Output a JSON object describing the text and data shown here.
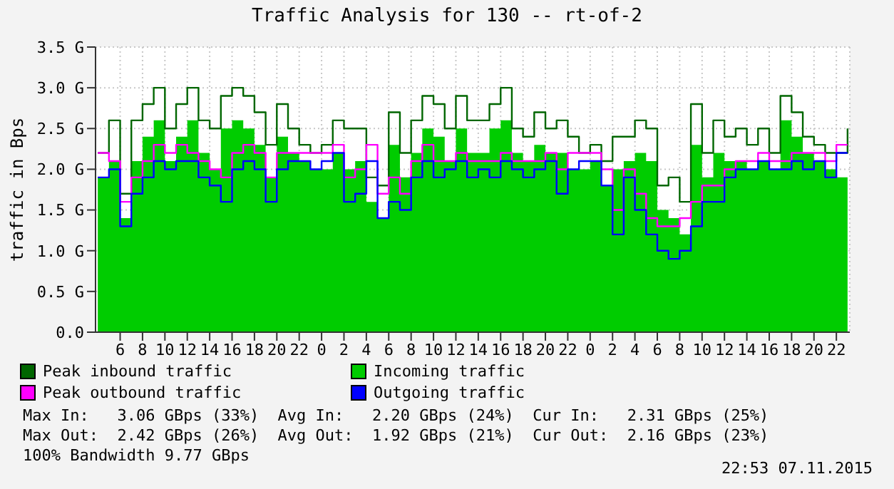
{
  "chart_data": {
    "type": "step",
    "title": "Traffic Analysis for 130 -- rt-of-2",
    "ylabel": "traffic in Bps",
    "x": [
      "2015-11-05T04:00",
      "2015-11-05T05:00",
      "2015-11-05T06:00",
      "2015-11-05T07:00",
      "2015-11-05T08:00",
      "2015-11-05T09:00",
      "2015-11-05T10:00",
      "2015-11-05T11:00",
      "2015-11-05T12:00",
      "2015-11-05T13:00",
      "2015-11-05T14:00",
      "2015-11-05T15:00",
      "2015-11-05T16:00",
      "2015-11-05T17:00",
      "2015-11-05T18:00",
      "2015-11-05T19:00",
      "2015-11-05T20:00",
      "2015-11-05T21:00",
      "2015-11-05T22:00",
      "2015-11-05T23:00",
      "2015-11-06T00:00",
      "2015-11-06T01:00",
      "2015-11-06T02:00",
      "2015-11-06T03:00",
      "2015-11-06T04:00",
      "2015-11-06T05:00",
      "2015-11-06T06:00",
      "2015-11-06T07:00",
      "2015-11-06T08:00",
      "2015-11-06T09:00",
      "2015-11-06T10:00",
      "2015-11-06T11:00",
      "2015-11-06T12:00",
      "2015-11-06T13:00",
      "2015-11-06T14:00",
      "2015-11-06T15:00",
      "2015-11-06T16:00",
      "2015-11-06T17:00",
      "2015-11-06T18:00",
      "2015-11-06T19:00",
      "2015-11-06T20:00",
      "2015-11-06T21:00",
      "2015-11-06T22:00",
      "2015-11-06T23:00",
      "2015-11-07T00:00",
      "2015-11-07T01:00",
      "2015-11-07T02:00",
      "2015-11-07T03:00",
      "2015-11-07T04:00",
      "2015-11-07T05:00",
      "2015-11-07T06:00",
      "2015-11-07T07:00",
      "2015-11-07T08:00",
      "2015-11-07T09:00",
      "2015-11-07T10:00",
      "2015-11-07T11:00",
      "2015-11-07T12:00",
      "2015-11-07T13:00",
      "2015-11-07T14:00",
      "2015-11-07T15:00",
      "2015-11-07T16:00",
      "2015-11-07T17:00",
      "2015-11-07T18:00",
      "2015-11-07T19:00",
      "2015-11-07T20:00",
      "2015-11-07T21:00",
      "2015-11-07T22:00",
      "2015-11-07T23:00"
    ],
    "series": [
      {
        "name": "Peak inbound traffic",
        "color": "#006600",
        "values": [
          2.2,
          2.6,
          1.7,
          2.6,
          2.8,
          3.0,
          2.5,
          2.8,
          3.0,
          2.6,
          2.5,
          2.9,
          3.0,
          2.9,
          2.7,
          2.3,
          2.8,
          2.5,
          2.3,
          2.2,
          2.3,
          2.6,
          2.5,
          2.5,
          1.9,
          1.8,
          2.7,
          2.2,
          2.6,
          2.9,
          2.8,
          2.5,
          2.9,
          2.6,
          2.6,
          2.8,
          3.0,
          2.5,
          2.4,
          2.7,
          2.5,
          2.6,
          2.4,
          2.2,
          2.3,
          2.1,
          2.4,
          2.4,
          2.6,
          2.5,
          1.8,
          1.9,
          1.6,
          2.8,
          2.2,
          2.6,
          2.4,
          2.5,
          2.3,
          2.5,
          2.2,
          2.9,
          2.7,
          2.4,
          2.3,
          2.2,
          2.2,
          2.5
        ]
      },
      {
        "name": "Incoming traffic",
        "type": "area",
        "color": "#00cc00",
        "values": [
          1.9,
          2.1,
          1.4,
          2.1,
          2.4,
          2.6,
          2.1,
          2.4,
          2.6,
          2.2,
          2.0,
          2.5,
          2.6,
          2.5,
          2.3,
          1.9,
          2.4,
          2.2,
          2.1,
          2.0,
          2.0,
          2.2,
          2.0,
          2.1,
          1.6,
          1.4,
          2.3,
          1.9,
          2.2,
          2.5,
          2.4,
          2.1,
          2.5,
          2.2,
          2.2,
          2.5,
          2.6,
          2.2,
          2.1,
          2.3,
          2.2,
          2.2,
          2.0,
          2.0,
          2.1,
          1.8,
          2.0,
          2.1,
          2.2,
          2.1,
          1.5,
          1.4,
          1.2,
          2.3,
          1.9,
          2.2,
          2.1,
          2.1,
          2.0,
          2.1,
          2.0,
          2.6,
          2.4,
          2.2,
          2.1,
          2.0,
          1.9,
          2.3
        ]
      },
      {
        "name": "Peak outbound traffic",
        "color": "#ff00ff",
        "values": [
          2.2,
          2.1,
          1.6,
          1.9,
          2.1,
          2.3,
          2.2,
          2.3,
          2.2,
          2.1,
          2.0,
          1.9,
          2.2,
          2.3,
          2.2,
          1.9,
          2.2,
          2.2,
          2.2,
          2.2,
          2.2,
          2.3,
          1.9,
          2.0,
          2.3,
          1.7,
          1.9,
          1.7,
          2.1,
          2.3,
          2.1,
          2.1,
          2.2,
          2.1,
          2.1,
          2.1,
          2.2,
          2.1,
          2.1,
          2.1,
          2.2,
          2.0,
          2.2,
          2.2,
          2.2,
          2.0,
          1.5,
          2.0,
          1.7,
          1.4,
          1.3,
          1.3,
          1.4,
          1.6,
          1.8,
          1.8,
          2.0,
          2.1,
          2.1,
          2.2,
          2.1,
          2.1,
          2.2,
          2.2,
          2.2,
          2.1,
          2.3,
          2.3
        ]
      },
      {
        "name": "Outgoing traffic",
        "color": "#0000ff",
        "values": [
          1.9,
          2.0,
          1.3,
          1.7,
          1.9,
          2.1,
          2.0,
          2.1,
          2.1,
          1.9,
          1.8,
          1.6,
          2.0,
          2.1,
          2.0,
          1.6,
          2.0,
          2.1,
          2.1,
          2.0,
          2.1,
          2.2,
          1.6,
          1.7,
          2.1,
          1.4,
          1.6,
          1.5,
          1.9,
          2.1,
          1.9,
          2.0,
          2.1,
          1.9,
          2.0,
          1.9,
          2.1,
          2.0,
          1.9,
          2.0,
          2.1,
          1.7,
          2.0,
          2.1,
          2.1,
          1.8,
          1.2,
          1.9,
          1.5,
          1.2,
          1.0,
          0.9,
          1.0,
          1.3,
          1.6,
          1.6,
          1.9,
          2.0,
          2.0,
          2.1,
          2.0,
          2.0,
          2.1,
          2.0,
          2.1,
          1.9,
          2.2,
          2.2
        ]
      }
    ],
    "xlim": [
      "2015-11-05T03:48",
      "2015-11-07T23:12"
    ],
    "xticks": [
      {
        "value": "2015-11-05T06:00",
        "label": "6"
      },
      {
        "value": "2015-11-05T08:00",
        "label": "8"
      },
      {
        "value": "2015-11-05T10:00",
        "label": "10"
      },
      {
        "value": "2015-11-05T12:00",
        "label": "12"
      },
      {
        "value": "2015-11-05T14:00",
        "label": "14"
      },
      {
        "value": "2015-11-05T16:00",
        "label": "16"
      },
      {
        "value": "2015-11-05T18:00",
        "label": "18"
      },
      {
        "value": "2015-11-05T20:00",
        "label": "20"
      },
      {
        "value": "2015-11-05T22:00",
        "label": "22"
      },
      {
        "value": "2015-11-06T00:00",
        "label": "0"
      },
      {
        "value": "2015-11-06T02:00",
        "label": "2"
      },
      {
        "value": "2015-11-06T04:00",
        "label": "4"
      },
      {
        "value": "2015-11-06T06:00",
        "label": "6"
      },
      {
        "value": "2015-11-06T08:00",
        "label": "8"
      },
      {
        "value": "2015-11-06T10:00",
        "label": "10"
      },
      {
        "value": "2015-11-06T12:00",
        "label": "12"
      },
      {
        "value": "2015-11-06T14:00",
        "label": "14"
      },
      {
        "value": "2015-11-06T16:00",
        "label": "16"
      },
      {
        "value": "2015-11-06T18:00",
        "label": "18"
      },
      {
        "value": "2015-11-06T20:00",
        "label": "20"
      },
      {
        "value": "2015-11-06T22:00",
        "label": "22"
      },
      {
        "value": "2015-11-07T00:00",
        "label": "0"
      },
      {
        "value": "2015-11-07T02:00",
        "label": "2"
      },
      {
        "value": "2015-11-07T04:00",
        "label": "4"
      },
      {
        "value": "2015-11-07T06:00",
        "label": "6"
      },
      {
        "value": "2015-11-07T08:00",
        "label": "8"
      },
      {
        "value": "2015-11-07T10:00",
        "label": "10"
      },
      {
        "value": "2015-11-07T12:00",
        "label": "12"
      },
      {
        "value": "2015-11-07T14:00",
        "label": "14"
      },
      {
        "value": "2015-11-07T16:00",
        "label": "16"
      },
      {
        "value": "2015-11-07T18:00",
        "label": "18"
      },
      {
        "value": "2015-11-07T20:00",
        "label": "20"
      },
      {
        "value": "2015-11-07T22:00",
        "label": "22"
      }
    ],
    "ylim": [
      0,
      3.5
    ],
    "yticks": [
      {
        "value": 0,
        "label": "0.0"
      },
      {
        "value": 0.5,
        "label": "0.5 G"
      },
      {
        "value": 1,
        "label": "1.0 G"
      },
      {
        "value": 1.5,
        "label": "1.5 G"
      },
      {
        "value": 2,
        "label": "2.0 G"
      },
      {
        "value": 2.5,
        "label": "2.5 G"
      },
      {
        "value": 3,
        "label": "3.0 G"
      },
      {
        "value": 3.5,
        "label": "3.5 G"
      }
    ],
    "grid": true,
    "legend": "bottom left",
    "line_style": "solid",
    "marker": "none",
    "annotations": [
      "Max In:   3.06 GBps (33%)  Avg In:   2.20 GBps (24%)  Cur In:   2.31 GBps (25%)",
      "Max Out:  2.42 GBps (26%)  Avg Out:  1.92 GBps (21%)  Cur Out:  2.16 GBps (23%)",
      "100% Bandwidth 9.77 GBps",
      "22:53 07.11.2015"
    ]
  }
}
